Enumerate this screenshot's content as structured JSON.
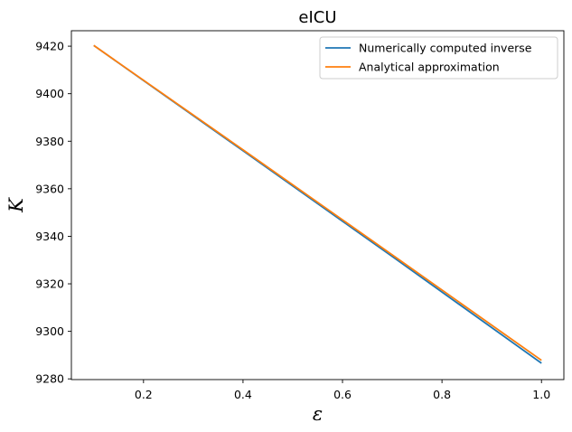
{
  "chart_data": {
    "type": "line",
    "title": "eICU",
    "xlabel": "ε",
    "ylabel": "K",
    "xlim": [
      0.055,
      1.045
    ],
    "ylim": [
      9279.7,
      9426.5
    ],
    "xticks": [
      0.2,
      0.4,
      0.6,
      0.8,
      1.0
    ],
    "xtick_labels": [
      "0.2",
      "0.4",
      "0.6",
      "0.8",
      "1.0"
    ],
    "yticks": [
      9280,
      9300,
      9320,
      9340,
      9360,
      9380,
      9400,
      9420
    ],
    "ytick_labels": [
      "9280",
      "9300",
      "9320",
      "9340",
      "9360",
      "9380",
      "9400",
      "9420"
    ],
    "grid": false,
    "legend_position": "upper right",
    "series": [
      {
        "name": "Numerically computed inverse",
        "color": "#1f77b4",
        "x": [
          0.1,
          0.4,
          0.7,
          1.0
        ],
        "y": [
          9420.3,
          9376.0,
          9331.5,
          9286.6
        ]
      },
      {
        "name": "Analytical approximation",
        "color": "#ff7f0e",
        "x": [
          0.1,
          0.4,
          0.7,
          1.0
        ],
        "y": [
          9420.3,
          9376.4,
          9332.2,
          9287.8
        ]
      }
    ]
  }
}
